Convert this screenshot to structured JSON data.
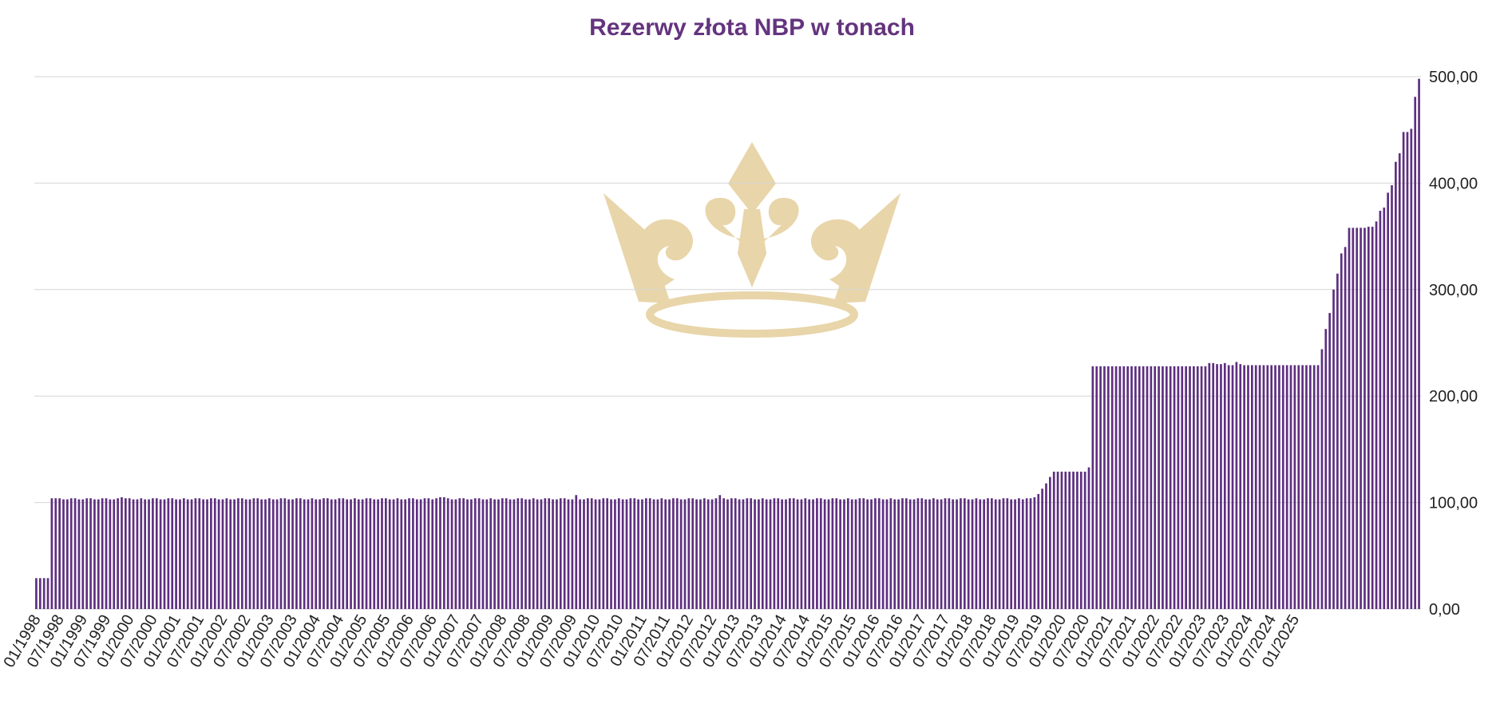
{
  "colors": {
    "bar": "#5e2f80",
    "title": "#64347e",
    "grid": "#d6d6d6",
    "axis": "#cfcfcf",
    "watermark": "#e7d3a5"
  },
  "watermark": {
    "icon": "crown-watermark-icon"
  },
  "chart_data": {
    "type": "bar",
    "title": "Rezerwy złota NBP w tonach",
    "xlabel": "",
    "ylabel": "",
    "ylim": [
      0,
      500
    ],
    "grid": true,
    "legend": "none",
    "y_tick_labels": [
      "0,00",
      "100,00",
      "200,00",
      "300,00",
      "400,00",
      "500,00"
    ],
    "y_tick_values": [
      0,
      100,
      200,
      300,
      400,
      500
    ],
    "x_tick_labels": [
      "01/1998",
      "07/1998",
      "01/1999",
      "07/1999",
      "01/2000",
      "07/2000",
      "01/2001",
      "07/2001",
      "01/2002",
      "07/2002",
      "01/2003",
      "07/2003",
      "01/2004",
      "07/2004",
      "01/2005",
      "07/2005",
      "01/2006",
      "07/2006",
      "01/2007",
      "07/2007",
      "01/2008",
      "07/2008",
      "01/2009",
      "07/2009",
      "01/2010",
      "07/2010",
      "01/2011",
      "07/2011",
      "01/2012",
      "07/2012",
      "01/2013",
      "07/2013",
      "01/2014",
      "07/2014",
      "01/2015",
      "07/2015",
      "01/2016",
      "07/2016",
      "01/2017",
      "07/2017",
      "01/2018",
      "07/2018",
      "01/2019",
      "07/2019",
      "01/2020",
      "07/2020",
      "01/2021",
      "07/2021",
      "01/2022",
      "07/2022",
      "01/2023",
      "07/2023",
      "01/2024",
      "07/2024",
      "01/2025"
    ],
    "series": [
      {
        "values": [
          29,
          29,
          29,
          29,
          104,
          104,
          104,
          103,
          103,
          104,
          104,
          103,
          103,
          104,
          104,
          103,
          103,
          104,
          104,
          103,
          103,
          104,
          105,
          104,
          104,
          103,
          103,
          104,
          103,
          103,
          104,
          104,
          103,
          103,
          104,
          104,
          103,
          103,
          104,
          103,
          103,
          104,
          104,
          103,
          103,
          104,
          104,
          103,
          103,
          104,
          103,
          103,
          104,
          104,
          103,
          103,
          104,
          104,
          103,
          103,
          104,
          103,
          103,
          104,
          104,
          103,
          103,
          104,
          104,
          103,
          103,
          104,
          103,
          103,
          104,
          104,
          103,
          103,
          104,
          104,
          103,
          103,
          104,
          103,
          103,
          104,
          104,
          103,
          103,
          104,
          104,
          103,
          103,
          104,
          103,
          103,
          104,
          104,
          103,
          103,
          104,
          104,
          103,
          104,
          105,
          105,
          104,
          103,
          103,
          104,
          104,
          103,
          103,
          104,
          104,
          103,
          103,
          104,
          103,
          103,
          104,
          104,
          103,
          103,
          104,
          104,
          103,
          103,
          104,
          103,
          103,
          104,
          104,
          103,
          103,
          104,
          104,
          103,
          103,
          107,
          103,
          103,
          104,
          104,
          103,
          103,
          104,
          104,
          103,
          103,
          104,
          103,
          103,
          104,
          104,
          103,
          103,
          104,
          104,
          103,
          103,
          104,
          103,
          103,
          104,
          104,
          103,
          103,
          104,
          104,
          103,
          103,
          104,
          103,
          103,
          104,
          107,
          104,
          103,
          104,
          104,
          103,
          103,
          104,
          104,
          103,
          103,
          104,
          103,
          103,
          104,
          104,
          103,
          103,
          104,
          104,
          103,
          103,
          104,
          103,
          103,
          104,
          104,
          103,
          103,
          104,
          104,
          103,
          103,
          104,
          103,
          103,
          104,
          104,
          103,
          103,
          104,
          104,
          103,
          103,
          104,
          103,
          103,
          104,
          104,
          103,
          103,
          104,
          104,
          103,
          103,
          104,
          103,
          103,
          104,
          104,
          103,
          103,
          104,
          104,
          103,
          103,
          104,
          103,
          103,
          104,
          104,
          103,
          103,
          104,
          104,
          103,
          103,
          104,
          103,
          104,
          104,
          105,
          108,
          113,
          118,
          124,
          129,
          129,
          129,
          129,
          129,
          129,
          129,
          129,
          129,
          133,
          228,
          228,
          228,
          228,
          228,
          228,
          228,
          228,
          228,
          228,
          228,
          228,
          228,
          228,
          228,
          228,
          228,
          228,
          228,
          228,
          228,
          228,
          228,
          228,
          228,
          228,
          228,
          228,
          228,
          228,
          231,
          231,
          230,
          230,
          231,
          229,
          229,
          232,
          230,
          229,
          229,
          229,
          229,
          229,
          229,
          229,
          229,
          229,
          229,
          229,
          229,
          229,
          229,
          229,
          229,
          229,
          229,
          229,
          229,
          244,
          263,
          278,
          300,
          315,
          334,
          340,
          358,
          358,
          358,
          358,
          358,
          359,
          359,
          364,
          374,
          377,
          391,
          398,
          420,
          428,
          448,
          448,
          451,
          481,
          498
        ]
      }
    ]
  }
}
